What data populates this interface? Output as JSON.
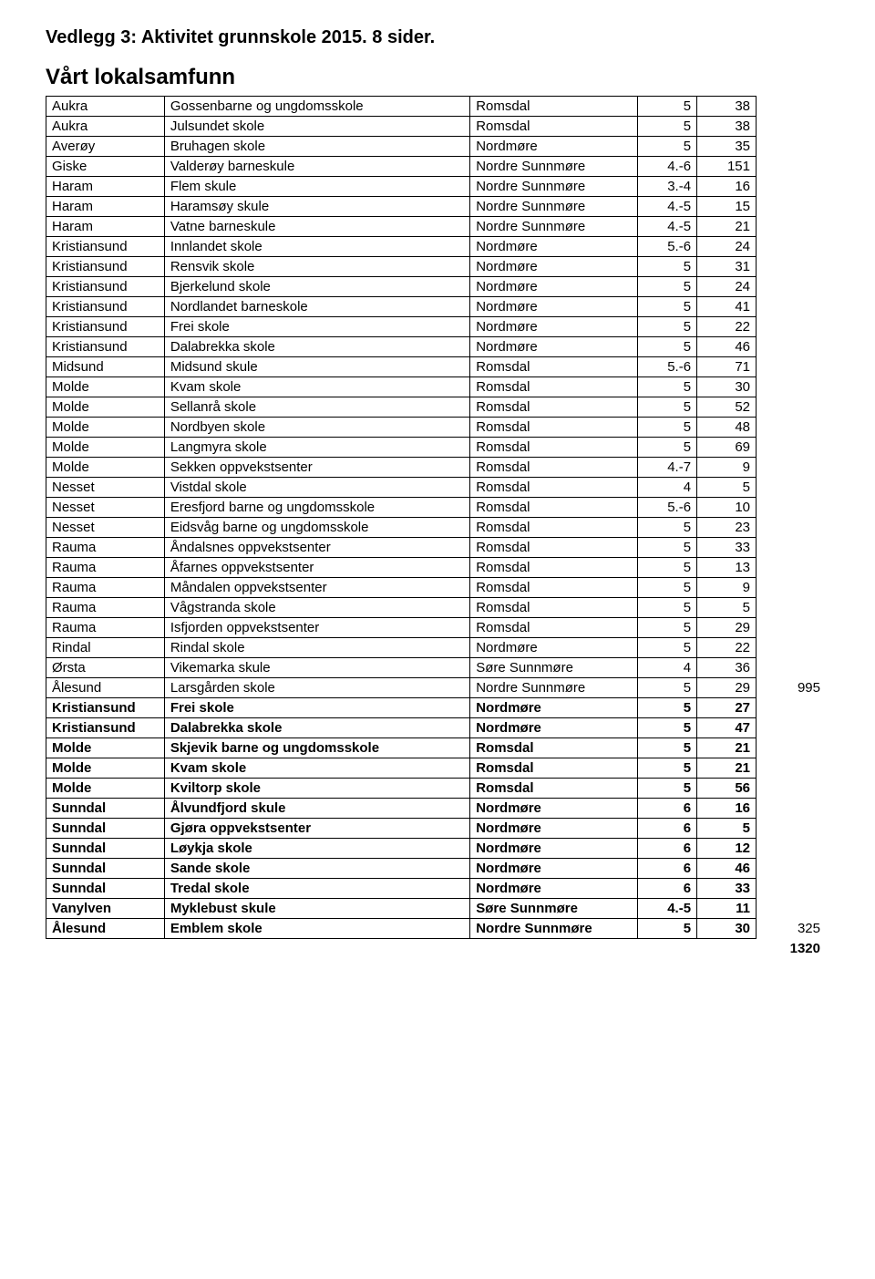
{
  "page_title": "Vedlegg 3: Aktivitet grunnskole 2015. 8 sider.",
  "section_title": "Vårt lokalsamfunn",
  "right_values": [
    {
      "row_index": 34,
      "value": "995"
    },
    {
      "row_index": 46,
      "value": "325"
    }
  ],
  "bottom_total": "1320",
  "columns": [
    "col-a",
    "col-b",
    "col-c",
    "col-d",
    "col-e"
  ],
  "rows": [
    {
      "bold": false,
      "cells": [
        "Aukra",
        "Gossenbarne og ungdomsskole",
        "Romsdal",
        "5",
        "38"
      ]
    },
    {
      "bold": false,
      "cells": [
        "Aukra",
        "Julsundet skole",
        "Romsdal",
        "5",
        "38"
      ]
    },
    {
      "bold": false,
      "cells": [
        "Averøy",
        "Bruhagen skole",
        "Nordmøre",
        "5",
        "35"
      ]
    },
    {
      "bold": false,
      "cells": [
        "Giske",
        "Valderøy barneskule",
        "Nordre Sunnmøre",
        "4.-6",
        "151"
      ]
    },
    {
      "bold": false,
      "cells": [
        "Haram",
        "Flem skule",
        "Nordre Sunnmøre",
        "3.-4",
        "16"
      ]
    },
    {
      "bold": false,
      "cells": [
        "Haram",
        "Haramsøy skule",
        "Nordre Sunnmøre",
        "4.-5",
        "15"
      ]
    },
    {
      "bold": false,
      "cells": [
        "Haram",
        "Vatne barneskule",
        "Nordre Sunnmøre",
        "4.-5",
        "21"
      ]
    },
    {
      "bold": false,
      "cells": [
        "Kristiansund",
        "Innlandet skole",
        "Nordmøre",
        "5.-6",
        "24"
      ]
    },
    {
      "bold": false,
      "cells": [
        "Kristiansund",
        "Rensvik skole",
        "Nordmøre",
        "5",
        "31"
      ]
    },
    {
      "bold": false,
      "cells": [
        "Kristiansund",
        "Bjerkelund skole",
        "Nordmøre",
        "5",
        "24"
      ]
    },
    {
      "bold": false,
      "cells": [
        "Kristiansund",
        "Nordlandet barneskole",
        "Nordmøre",
        "5",
        "41"
      ]
    },
    {
      "bold": false,
      "cells": [
        "Kristiansund",
        "Frei skole",
        "Nordmøre",
        "5",
        "22"
      ]
    },
    {
      "bold": false,
      "cells": [
        "Kristiansund",
        "Dalabrekka skole",
        "Nordmøre",
        "5",
        "46"
      ]
    },
    {
      "bold": false,
      "cells": [
        "Midsund",
        "Midsund skule",
        "Romsdal",
        "5.-6",
        "71"
      ]
    },
    {
      "bold": false,
      "cells": [
        "Molde",
        "Kvam skole",
        "Romsdal",
        "5",
        "30"
      ]
    },
    {
      "bold": false,
      "cells": [
        "Molde",
        "Sellanrå skole",
        "Romsdal",
        "5",
        "52"
      ]
    },
    {
      "bold": false,
      "cells": [
        "Molde",
        "Nordbyen skole",
        "Romsdal",
        "5",
        "48"
      ]
    },
    {
      "bold": false,
      "cells": [
        "Molde",
        "Langmyra skole",
        "Romsdal",
        "5",
        "69"
      ]
    },
    {
      "bold": false,
      "cells": [
        "Molde",
        "Sekken oppvekstsenter",
        "Romsdal",
        "4.-7",
        "9"
      ]
    },
    {
      "bold": false,
      "cells": [
        "Nesset",
        "Vistdal skole",
        "Romsdal",
        "4",
        "5"
      ]
    },
    {
      "bold": false,
      "cells": [
        "Nesset",
        "Eresfjord barne og ungdomsskole",
        "Romsdal",
        "5.-6",
        "10"
      ]
    },
    {
      "bold": false,
      "cells": [
        "Nesset",
        "Eidsvåg barne og ungdomsskole",
        "Romsdal",
        "5",
        "23"
      ]
    },
    {
      "bold": false,
      "cells": [
        "Rauma",
        "Åndalsnes oppvekstsenter",
        "Romsdal",
        "5",
        "33"
      ]
    },
    {
      "bold": false,
      "cells": [
        "Rauma",
        "Åfarnes  oppvekstsenter",
        "Romsdal",
        "5",
        "13"
      ]
    },
    {
      "bold": false,
      "cells": [
        "Rauma",
        "Måndalen oppvekstsenter",
        "Romsdal",
        "5",
        "9"
      ]
    },
    {
      "bold": false,
      "cells": [
        "Rauma",
        "Vågstranda  skole",
        "Romsdal",
        "5",
        "5"
      ]
    },
    {
      "bold": false,
      "cells": [
        "Rauma",
        "Isfjorden oppvekstsenter",
        "Romsdal",
        "5",
        "29"
      ]
    },
    {
      "bold": false,
      "cells": [
        "Rindal",
        "Rindal skole",
        "Nordmøre",
        "5",
        "22"
      ]
    },
    {
      "bold": false,
      "cells": [
        "Ørsta",
        "Vikemarka skule",
        "Søre Sunnmøre",
        "4",
        "36"
      ]
    },
    {
      "bold": false,
      "cells": [
        "Ålesund",
        "Larsgården skole",
        "Nordre Sunnmøre",
        "5",
        "29"
      ]
    },
    {
      "bold": true,
      "cells": [
        "Kristiansund",
        "Frei skole",
        "Nordmøre",
        "5",
        "27"
      ]
    },
    {
      "bold": true,
      "cells": [
        "Kristiansund",
        "Dalabrekka skole",
        "Nordmøre",
        "5",
        "47"
      ]
    },
    {
      "bold": true,
      "cells": [
        "Molde",
        "Skjevik barne og ungdomsskole",
        "Romsdal",
        "5",
        "21"
      ]
    },
    {
      "bold": true,
      "cells": [
        "Molde",
        "Kvam  skole",
        "Romsdal",
        "5",
        "21"
      ]
    },
    {
      "bold": true,
      "cells": [
        "Molde",
        "Kviltorp skole",
        "Romsdal",
        "5",
        "56"
      ]
    },
    {
      "bold": true,
      "cells": [
        "Sunndal",
        "Ålvundfjord skule",
        "Nordmøre",
        "6",
        "16"
      ]
    },
    {
      "bold": true,
      "cells": [
        "Sunndal",
        "Gjøra oppvekstsenter",
        "Nordmøre",
        "6",
        "5"
      ]
    },
    {
      "bold": true,
      "cells": [
        "Sunndal",
        "Løykja skole",
        "Nordmøre",
        "6",
        "12"
      ]
    },
    {
      "bold": true,
      "cells": [
        "Sunndal",
        "Sande skole",
        "Nordmøre",
        "6",
        "46"
      ]
    },
    {
      "bold": true,
      "cells": [
        "Sunndal",
        "Tredal skole",
        "Nordmøre",
        "6",
        "33"
      ]
    },
    {
      "bold": true,
      "cells": [
        "Vanylven",
        "Myklebust skule",
        "Søre Sunnmøre",
        "4.-5",
        "11"
      ]
    },
    {
      "bold": true,
      "cells": [
        "Ålesund",
        "Emblem skole",
        "Nordre Sunnmøre",
        "5",
        "30"
      ]
    }
  ]
}
